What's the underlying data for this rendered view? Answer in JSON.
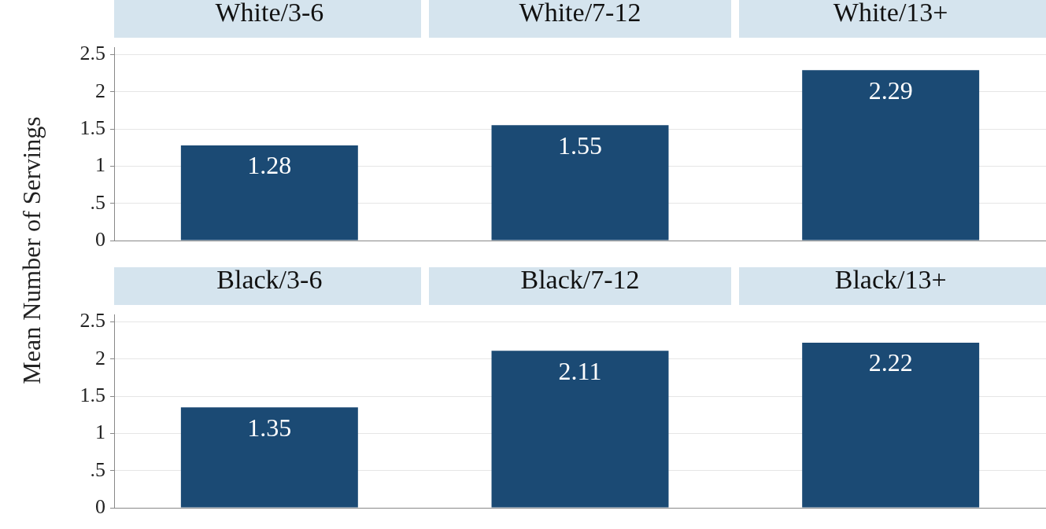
{
  "chart_data": [
    {
      "type": "bar",
      "ylabel": "Mean Number of Servings",
      "categories": [
        "White/3-6",
        "White/7-12",
        "White/13+"
      ],
      "values": [
        1.28,
        1.55,
        2.29
      ],
      "color": "#1b4a74",
      "ylim": [
        0,
        2.6
      ],
      "yticks": [
        0,
        {
          "value": 0.5,
          "label": ".5"
        },
        1,
        1.5,
        2,
        2.5
      ],
      "grid": "y",
      "data_labels": true
    },
    {
      "type": "bar",
      "categories": [
        "Black/3-6",
        "Black/7-12",
        "Black/13+"
      ],
      "values": [
        1.35,
        2.11,
        2.22
      ],
      "color": "#1b4a74",
      "ylim": [
        0,
        2.6
      ],
      "yticks": [
        0,
        {
          "value": 0.5,
          "label": ".5"
        },
        1,
        1.5,
        2,
        2.5
      ],
      "grid": "y",
      "data_labels": true
    }
  ]
}
